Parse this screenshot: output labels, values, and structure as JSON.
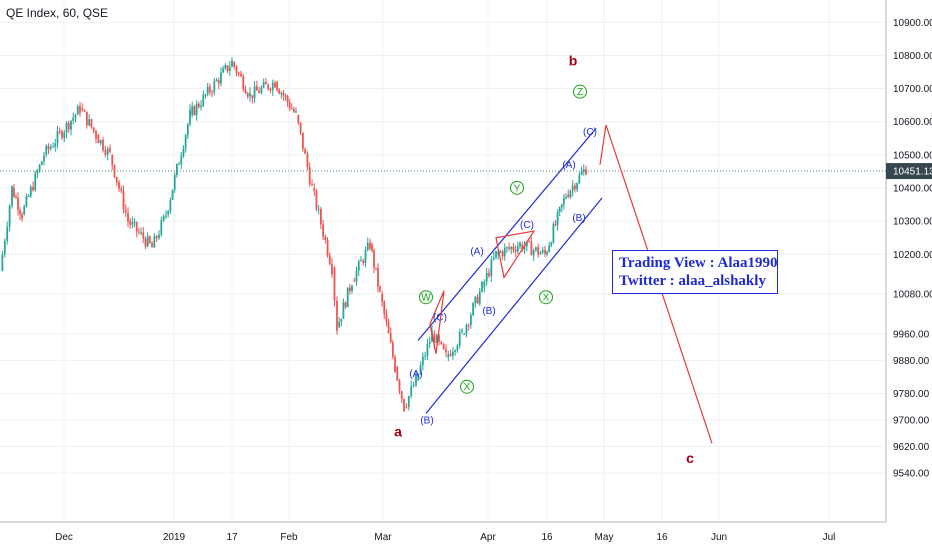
{
  "header": {
    "symbol_title": "QE Index, 60, QSE"
  },
  "info_box": {
    "line1": "Trading View : Alaa1990",
    "line2": "Twitter : alaa_alshakly"
  },
  "chart_data": {
    "type": "candlestick",
    "title": "QE Index, 60, QSE",
    "x_ticks": [
      "Dec",
      "2019",
      "17",
      "Feb",
      "Mar",
      "Apr",
      "16",
      "May",
      "16",
      "Jun",
      "Jul"
    ],
    "y_ticks": [
      10900,
      10800,
      10700,
      10600,
      10500,
      10400,
      10300,
      10200,
      10080,
      9960,
      9880,
      9780,
      9700,
      9620,
      9540
    ],
    "y_tick_labels": [
      "10900.00",
      "10800.00",
      "10700.00",
      "10600.00",
      "10500.00",
      "10400.00",
      "10300.00",
      "10200.00",
      "10080.00",
      "9960.00",
      "9880.00",
      "9780.00",
      "9700.00",
      "9620.00",
      "9540.00"
    ],
    "current_price": 10451.13,
    "current_price_label": "10451.13",
    "price_path": [
      {
        "x": "Nov",
        "y": 10150
      },
      {
        "x": "Nov",
        "y": 10400
      },
      {
        "x": "Nov",
        "y": 10320
      },
      {
        "x": "Dec",
        "y": 10500
      },
      {
        "x": "Dec",
        "y": 10640
      },
      {
        "x": "Dec",
        "y": 10560
      },
      {
        "x": "Dec",
        "y": 10500
      },
      {
        "x": "Dec",
        "y": 10300
      },
      {
        "x": "Dec",
        "y": 10220
      },
      {
        "x": "2019",
        "y": 10320
      },
      {
        "x": "2019",
        "y": 10620
      },
      {
        "x": "17",
        "y": 10780
      },
      {
        "x": "17",
        "y": 10680
      },
      {
        "x": "Feb",
        "y": 10720
      },
      {
        "x": "Feb",
        "y": 10620
      },
      {
        "x": "Feb",
        "y": 10400
      },
      {
        "x": "Feb",
        "y": 10160
      },
      {
        "x": "Feb",
        "y": 9980
      },
      {
        "x": "Feb",
        "y": 10120
      },
      {
        "x": "Mar",
        "y": 10230
      },
      {
        "x": "Mar",
        "y": 10080
      },
      {
        "x": "Mar",
        "y": 9860
      },
      {
        "x": "Mar",
        "y": 9740
      },
      {
        "x": "Mar",
        "y": 9820
      },
      {
        "x": "Mar",
        "y": 9960
      },
      {
        "x": "Mar",
        "y": 9890
      },
      {
        "x": "Mar",
        "y": 9960
      },
      {
        "x": "Apr",
        "y": 10100
      },
      {
        "x": "Apr",
        "y": 10200
      },
      {
        "x": "Apr",
        "y": 10230
      },
      {
        "x": "16",
        "y": 10200
      },
      {
        "x": "16",
        "y": 10380
      },
      {
        "x": "16",
        "y": 10460
      }
    ],
    "channel_lines": [
      {
        "from": {
          "x": "Mar",
          "y": 9940
        },
        "to": {
          "x": "Apr",
          "y": 10580
        }
      },
      {
        "from": {
          "x": "Mar",
          "y": 9720
        },
        "to": {
          "x": "Apr",
          "y": 10370
        }
      }
    ],
    "triangles": [
      {
        "points": [
          {
            "x": "Mar",
            "y": 9990
          },
          {
            "x": "Mar",
            "y": 10090
          },
          {
            "x": "Mar",
            "y": 9900
          }
        ]
      },
      {
        "points": [
          {
            "x": "Apr",
            "y": 10250
          },
          {
            "x": "Apr",
            "y": 10270
          },
          {
            "x": "Apr",
            "y": 10130
          }
        ]
      }
    ],
    "projection": {
      "from": {
        "x": "May",
        "y": 10590
      },
      "to": {
        "x": "Jun",
        "y": 9630
      }
    },
    "wave_labels": [
      {
        "text": "a",
        "color": "#a40012",
        "x": "Mar",
        "y": 9650
      },
      {
        "text": "b",
        "color": "#a40012",
        "x": "Apr",
        "y": 10770
      },
      {
        "text": "c",
        "color": "#a40012",
        "x": "Jun",
        "y": 9570
      },
      {
        "text": "W",
        "color": "#16a816",
        "x": "Mar",
        "y": 10060
      },
      {
        "text": "X",
        "color": "#16a816",
        "x": "Mar",
        "y": 9790
      },
      {
        "text": "Y",
        "color": "#16a816",
        "x": "Apr",
        "y": 10390
      },
      {
        "text": "X",
        "color": "#16a816",
        "x": "16",
        "y": 10060
      },
      {
        "text": "Z",
        "color": "#16a816",
        "x": "Apr",
        "y": 10680
      },
      {
        "text": "(A)",
        "color": "#1e2ad6",
        "x": "Mar",
        "y": 9830
      },
      {
        "text": "(B)",
        "color": "#1e2ad6",
        "x": "Mar",
        "y": 9690
      },
      {
        "text": "(C)",
        "color": "#1e2ad6",
        "x": "Mar",
        "y": 10000
      },
      {
        "text": "(A)",
        "color": "#1e2ad6",
        "x": "Apr",
        "y": 10200
      },
      {
        "text": "(B)",
        "color": "#1e2ad6",
        "x": "Apr",
        "y": 10020
      },
      {
        "text": "(C)",
        "color": "#1e2ad6",
        "x": "Apr",
        "y": 10280
      },
      {
        "text": "(A)",
        "color": "#1e2ad6",
        "x": "Apr",
        "y": 10460
      },
      {
        "text": "(B)",
        "color": "#1e2ad6",
        "x": "Apr",
        "y": 10300
      },
      {
        "text": "(C)",
        "color": "#1e2ad6",
        "x": "Apr",
        "y": 10560
      }
    ],
    "grid": true,
    "colors": {
      "up": "#26a69a",
      "down": "#ef5350",
      "channel": "#1e2ad6",
      "projection": "#e83a3a",
      "wave_blue": "#1e2ad6",
      "wave_green": "#16a816",
      "wave_red": "#a40012",
      "price_tag": "#37474f"
    }
  }
}
